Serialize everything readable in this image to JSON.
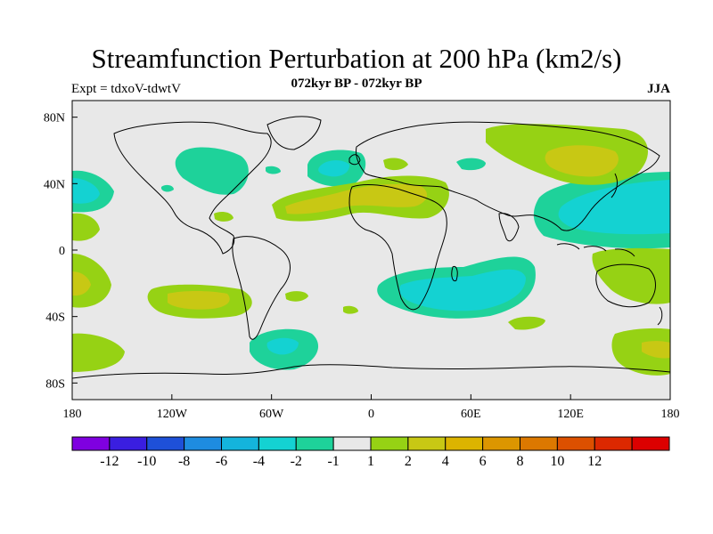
{
  "title": "Streamfunction Perturbation at 200 hPa (km2/s)",
  "subtitle": "072kyr BP - 072kyr BP",
  "left_label": "Expt = tdxoV-tdwtV",
  "right_label": "JJA",
  "y_ticks": [
    {
      "label": "80N",
      "lat": 80
    },
    {
      "label": "40N",
      "lat": 40
    },
    {
      "label": "0",
      "lat": 0
    },
    {
      "label": "40S",
      "lat": -40
    },
    {
      "label": "80S",
      "lat": -80
    }
  ],
  "x_ticks": [
    {
      "label": "180",
      "lon": -180
    },
    {
      "label": "120W",
      "lon": -120
    },
    {
      "label": "60W",
      "lon": -60
    },
    {
      "label": "0",
      "lon": 0
    },
    {
      "label": "60E",
      "lon": 60
    },
    {
      "label": "120E",
      "lon": 120
    },
    {
      "label": "180",
      "lon": 180
    }
  ],
  "colorbar": {
    "colors": [
      "#7f00e0",
      "#3a1ee0",
      "#1e50d8",
      "#1e8ce0",
      "#14b4dc",
      "#14d2d2",
      "#1ed29a",
      "#e8e8e8",
      "#96d214",
      "#c8c814",
      "#dcb400",
      "#dc9600",
      "#dc7800",
      "#dc5000",
      "#dc2800",
      "#dc0000"
    ],
    "labels": [
      "-12",
      "-10",
      "-8",
      "-6",
      "-4",
      "-2",
      "-1",
      "1",
      "2",
      "4",
      "6",
      "8",
      "10",
      "12"
    ]
  },
  "map_colors": {
    "background": "#e8e8e8",
    "neg1": "#1ed29a",
    "neg2": "#14d2d2",
    "pos1": "#96d214",
    "pos2": "#c8c814",
    "coast": "#000000"
  }
}
